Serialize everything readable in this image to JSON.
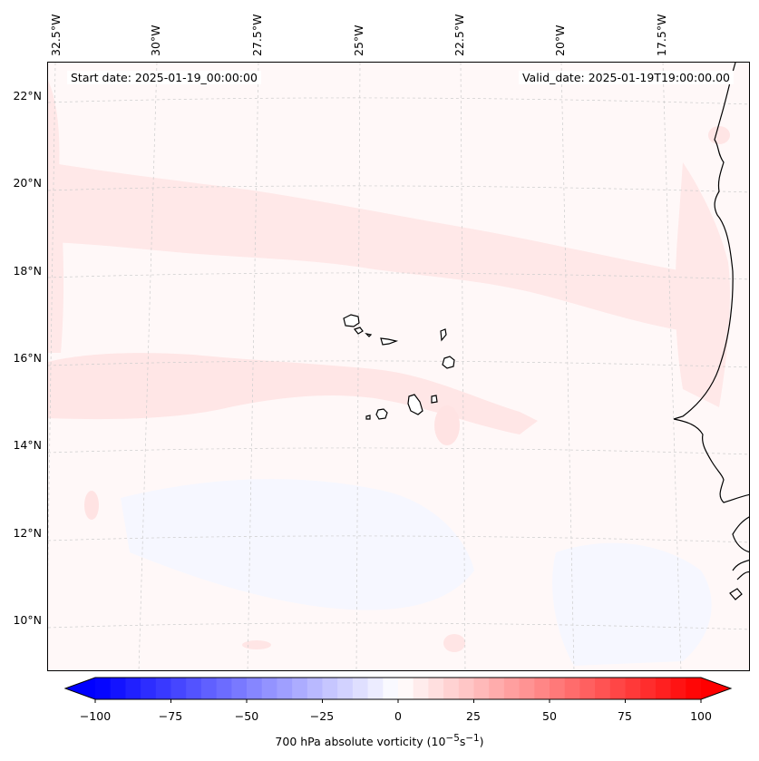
{
  "header": {
    "start_date": "Start date: 2025-01-19_00:00:00",
    "valid_date": "Valid_date: 2025-01-19T19:00:00.00"
  },
  "map": {
    "top_lon_labels": [
      "32.5°W",
      "30°W",
      "27.5°W",
      "25°W",
      "22.5°W",
      "20°W",
      "17.5°W"
    ],
    "left_lat_labels": [
      "22°N",
      "20°N",
      "18°N",
      "16°N",
      "14°N",
      "12°N",
      "10°N"
    ],
    "field_colors": {
      "positive_weak": "#ffe6e6",
      "background": "#fff8f8",
      "negative_weak": "#f5f7ff"
    },
    "coastline_color": "#000000"
  },
  "colorbar": {
    "label": "700 hPa absolute vorticity (10",
    "label_sup1": "−5",
    "label_mid": "s",
    "label_sup2": "−1",
    "label_end": ")",
    "ticks": [
      "−100",
      "−75",
      "−50",
      "−25",
      "0",
      "25",
      "50",
      "75",
      "100"
    ],
    "min": -100,
    "max": 100,
    "colors": {
      "negative_end": "#0000ff",
      "zero": "#ffffff",
      "positive_end": "#ff0000"
    }
  }
}
